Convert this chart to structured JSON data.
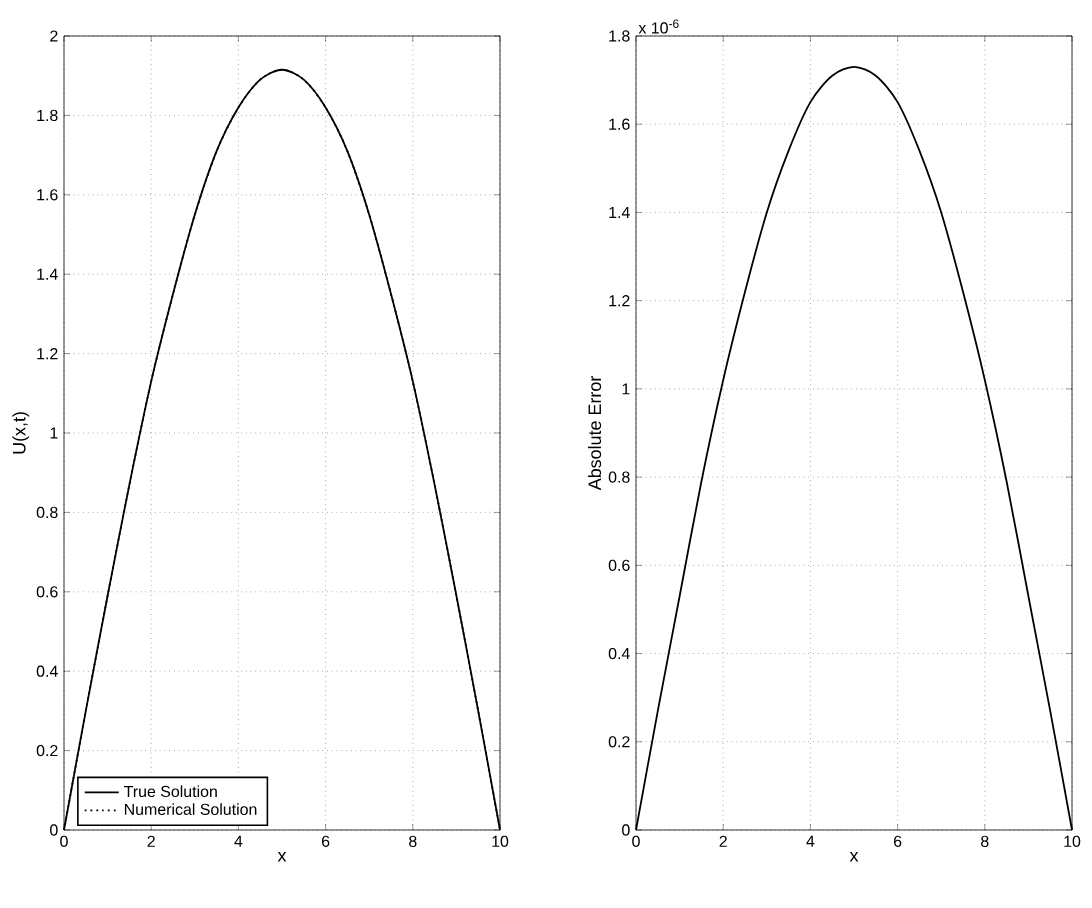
{
  "chart_data": [
    {
      "type": "line",
      "x": [
        0,
        0.5,
        1,
        1.5,
        2,
        2.5,
        3,
        3.5,
        4,
        4.5,
        5,
        5.5,
        6,
        6.5,
        7,
        7.5,
        8,
        8.5,
        9,
        9.5,
        10
      ],
      "xlabel": "x",
      "ylabel": "U(x,t)",
      "series": [
        {
          "name": "True Solution",
          "color": "#000000",
          "line_style": "solid",
          "values": [
            0,
            0.3,
            0.59,
            0.87,
            1.13,
            1.35,
            1.55,
            1.71,
            1.82,
            1.89,
            1.915,
            1.89,
            1.82,
            1.71,
            1.55,
            1.35,
            1.13,
            0.87,
            0.59,
            0.3,
            0
          ]
        },
        {
          "name": "Numerical Solution",
          "color": "#000000",
          "line_style": "dotted",
          "values": [
            0,
            0.3,
            0.59,
            0.87,
            1.13,
            1.35,
            1.55,
            1.71,
            1.82,
            1.89,
            1.915,
            1.89,
            1.82,
            1.71,
            1.55,
            1.35,
            1.13,
            0.87,
            0.59,
            0.3,
            0
          ]
        }
      ],
      "xlim": [
        0,
        10
      ],
      "xticks": [
        0,
        2,
        4,
        6,
        8,
        10
      ],
      "ylim": [
        0,
        2
      ],
      "yticks": [
        0,
        0.2,
        0.4,
        0.6,
        0.8,
        1,
        1.2,
        1.4,
        1.6,
        1.8,
        2
      ],
      "grid": true,
      "legend": "bottom left"
    },
    {
      "type": "line",
      "x": [
        0,
        0.5,
        1,
        1.5,
        2,
        2.5,
        3,
        3.5,
        4,
        4.5,
        5,
        5.5,
        6,
        6.5,
        7,
        7.5,
        8,
        8.5,
        9,
        9.5,
        10
      ],
      "xlabel": "x",
      "ylabel": "Absolute Error",
      "series": [
        {
          "color": "#000000",
          "line_style": "solid",
          "values": [
            0,
            0.27,
            0.53,
            0.79,
            1.02,
            1.22,
            1.4,
            1.54,
            1.65,
            1.71,
            1.73,
            1.71,
            1.65,
            1.54,
            1.4,
            1.22,
            1.02,
            0.79,
            0.53,
            0.27,
            0
          ]
        }
      ],
      "annotations": [
        "x 10$^{-6}$"
      ],
      "xlim": [
        0,
        10
      ],
      "xticks": [
        0,
        2,
        4,
        6,
        8,
        10
      ],
      "ylim": [
        0,
        1.8
      ],
      "yticks": [
        0,
        0.2,
        0.4,
        0.6,
        0.8,
        1,
        1.2,
        1.4,
        1.6,
        1.8
      ],
      "grid": true
    }
  ]
}
